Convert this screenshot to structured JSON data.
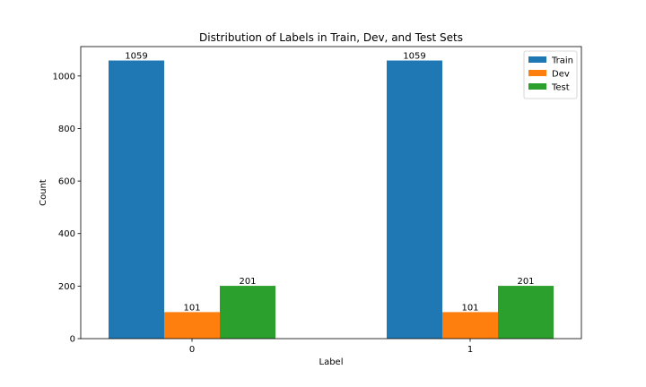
{
  "chart_data": {
    "type": "bar",
    "title": "Distribution of Labels in Train, Dev, and Test Sets",
    "xlabel": "Label",
    "ylabel": "Count",
    "categories": [
      "0",
      "1"
    ],
    "series": [
      {
        "name": "Train",
        "values": [
          1059,
          1059
        ],
        "color": "#1f77b4"
      },
      {
        "name": "Dev",
        "values": [
          101,
          101
        ],
        "color": "#ff7f0e"
      },
      {
        "name": "Test",
        "values": [
          201,
          201
        ],
        "color": "#2ca02c"
      }
    ],
    "ylim": [
      0,
      1112
    ],
    "yticks": [
      0,
      200,
      400,
      600,
      800,
      1000
    ],
    "grid": false,
    "legend": "top-right"
  }
}
